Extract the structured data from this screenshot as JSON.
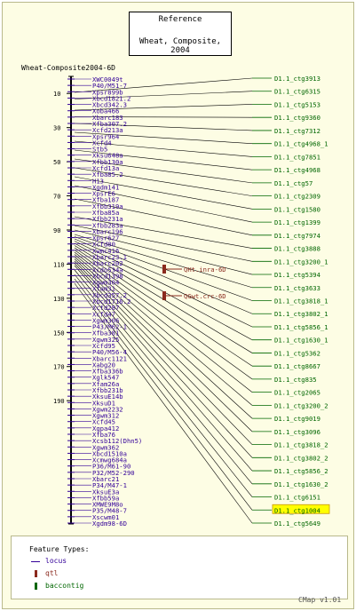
{
  "reference": {
    "title": "Reference",
    "subtitle": "Wheat, Composite, 2004"
  },
  "map": {
    "title": "Wheat-Composite2004-6D",
    "scale_ticks": [
      10,
      30,
      50,
      70,
      90,
      110,
      130,
      150,
      170,
      190
    ],
    "markers": [
      "XWC0049t",
      "P40/M51-7",
      "Xpsr899b",
      "Xbcd1821.2",
      "Xbcd342.3",
      "Xoba466",
      "Xbarc183",
      "Xfba307.2",
      "Xcfd213a",
      "Xpsr964",
      "Xcfd4",
      "Stb5",
      "Xksu648a",
      "Xfbb130a",
      "Xcfd13a",
      "Xfba85.2",
      "H13",
      "Xgdm141",
      "XpsrE6",
      "Xfba187",
      "Xfbb319a",
      "Xfba85a",
      "Xfbb231a",
      "Xfbb283a",
      "Xbarc196",
      "Xpsr627",
      "Xcfd80",
      "Xwmc416",
      "Xbarc23.1",
      "Xbarc202",
      "Xcdo534a",
      "Xbcd1398",
      "Xgwm304",
      "Xfam31",
      "Xbcd357.2",
      "Xbcd1716.2",
      "Xcfd287",
      "Xcfd47",
      "Xgwm306",
      "P43/M62-1",
      "Xfba381",
      "Xgwm325",
      "Xcfd95",
      "P40/M56-4",
      "Xbarc1121",
      "Xabg20",
      "Xfba336b",
      "Xglk547",
      "Xfam26a",
      "Xfbb231b",
      "XksuE14b",
      "XksuD1",
      "Xgwm2232",
      "Xgwm312",
      "Xcfd45",
      "Xgpa412",
      "Xfba76",
      "Xcsb112(Dhn5)",
      "Xgwm362",
      "Xbcd1510a",
      "Xcmwg684a",
      "P36/M61-90",
      "P32/M52-290",
      "Xbarc21",
      "P34/M47-1",
      "XksuE3a",
      "Xfbb59a",
      "XMWE9M8o",
      "P35/M48-7",
      "Xscwm01",
      "Xgdm98-6D"
    ],
    "qtls": [
      "QHt.inra-6D",
      "QGwt.crc-6D"
    ],
    "contigs": [
      "D1.1_ctg3913",
      "D1.1_ctg6315",
      "D1.1_ctg5153",
      "D1.1_ctg9360",
      "D1.1_ctg7312",
      "D1.1_ctg4968_1",
      "D1.1_ctg7851",
      "D1.1_ctg4968",
      "D1.1_ctg57",
      "D1.1_ctg2309",
      "D1.1_ctg1580",
      "D1.1_ctg1399",
      "D1.1_ctg7974",
      "D1.1_ctg3888",
      "D1.1_ctg3200_1",
      "D1.1_ctg5394",
      "D1.1_ctg3633",
      "D1.1_ctg3818_1",
      "D1.1_ctg3802_1",
      "D1.1_ctg5856_1",
      "D1.1_ctg1630_1",
      "D1.1_ctg5362",
      "D1.1_ctg8667",
      "D1.1_ctg835",
      "D1.1_ctg2065",
      "D1.1_ctg3200_2",
      "D1.1_ctg9019",
      "D1.1_ctg3096",
      "D1.1_ctg3818_2",
      "D1.1_ctg3802_2",
      "D1.1_ctg5856_2",
      "D1.1_ctg1630_2",
      "D1.1_ctg6151",
      "D1.1_ctg1004",
      "D1.1_ctg5649"
    ],
    "highlighted_contig": "D1.1_ctg1004"
  },
  "legend": {
    "title": "Feature Types:",
    "items": [
      {
        "label": "locus",
        "color": "#330099"
      },
      {
        "label": "qtl",
        "color": "#8b2a1e"
      },
      {
        "label": "baccontig",
        "color": "#006600"
      }
    ]
  },
  "footer": {
    "version": "CMap v1.01"
  },
  "colors": {
    "background": "#fdfde4",
    "marker_text": "#330099",
    "contig_text": "#006600",
    "qtl_text": "#8b2a1e",
    "highlight": "#ffff00"
  }
}
